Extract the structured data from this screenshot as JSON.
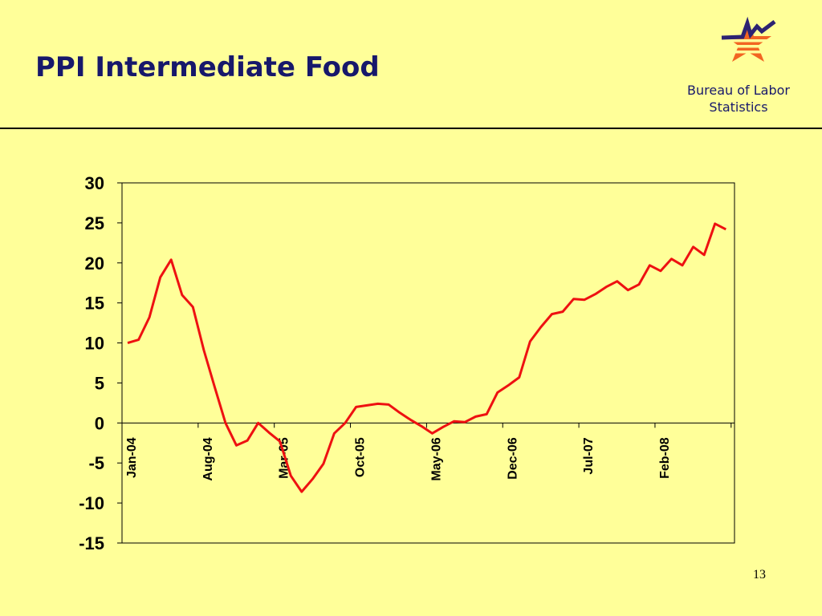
{
  "slide": {
    "title": "PPI Intermediate Food",
    "org_line1": "Bureau of Labor",
    "org_line2": "Statistics",
    "page_number": "13"
  },
  "colors": {
    "background": "#ffff99",
    "title": "#17186b",
    "series": "#ee1111",
    "logo_navy": "#2c2372",
    "logo_orange": "#f26522"
  },
  "chart_data": {
    "type": "line",
    "title": "",
    "xlabel": "",
    "ylabel": "",
    "ylim": [
      -15,
      30
    ],
    "yticks": [
      30,
      25,
      20,
      15,
      10,
      5,
      0,
      -5,
      -10,
      -15
    ],
    "x_tick_labels": [
      {
        "label": "Jan-04",
        "index": 0
      },
      {
        "label": "Aug-04",
        "index": 7
      },
      {
        "label": "Mar-05",
        "index": 14
      },
      {
        "label": "Oct-05",
        "index": 21
      },
      {
        "label": "May-06",
        "index": 28
      },
      {
        "label": "Dec-06",
        "index": 35
      },
      {
        "label": "Jul-07",
        "index": 42
      },
      {
        "label": "Feb-08",
        "index": 49
      }
    ],
    "n_points": 56,
    "grid": false,
    "legend": "none",
    "series": [
      {
        "values": [
          10.0,
          10.4,
          13.2,
          18.2,
          20.4,
          16.0,
          14.5,
          9.1,
          4.5,
          0.0,
          -2.8,
          -2.2,
          0.0,
          -1.2,
          -2.3,
          -6.6,
          -8.6,
          -7.0,
          -5.1,
          -1.3,
          0.0,
          2.0,
          2.2,
          2.4,
          2.3,
          1.3,
          0.4,
          -0.4,
          -1.3,
          -0.5,
          0.2,
          0.1,
          0.8,
          1.1,
          3.8,
          4.7,
          5.7,
          10.2,
          12.0,
          13.6,
          13.9,
          15.5,
          15.4,
          16.1,
          17.0,
          17.7,
          16.6,
          17.3,
          19.7,
          19.0,
          20.5,
          19.7,
          22.0,
          21.0,
          24.9,
          24.2
        ]
      }
    ]
  }
}
